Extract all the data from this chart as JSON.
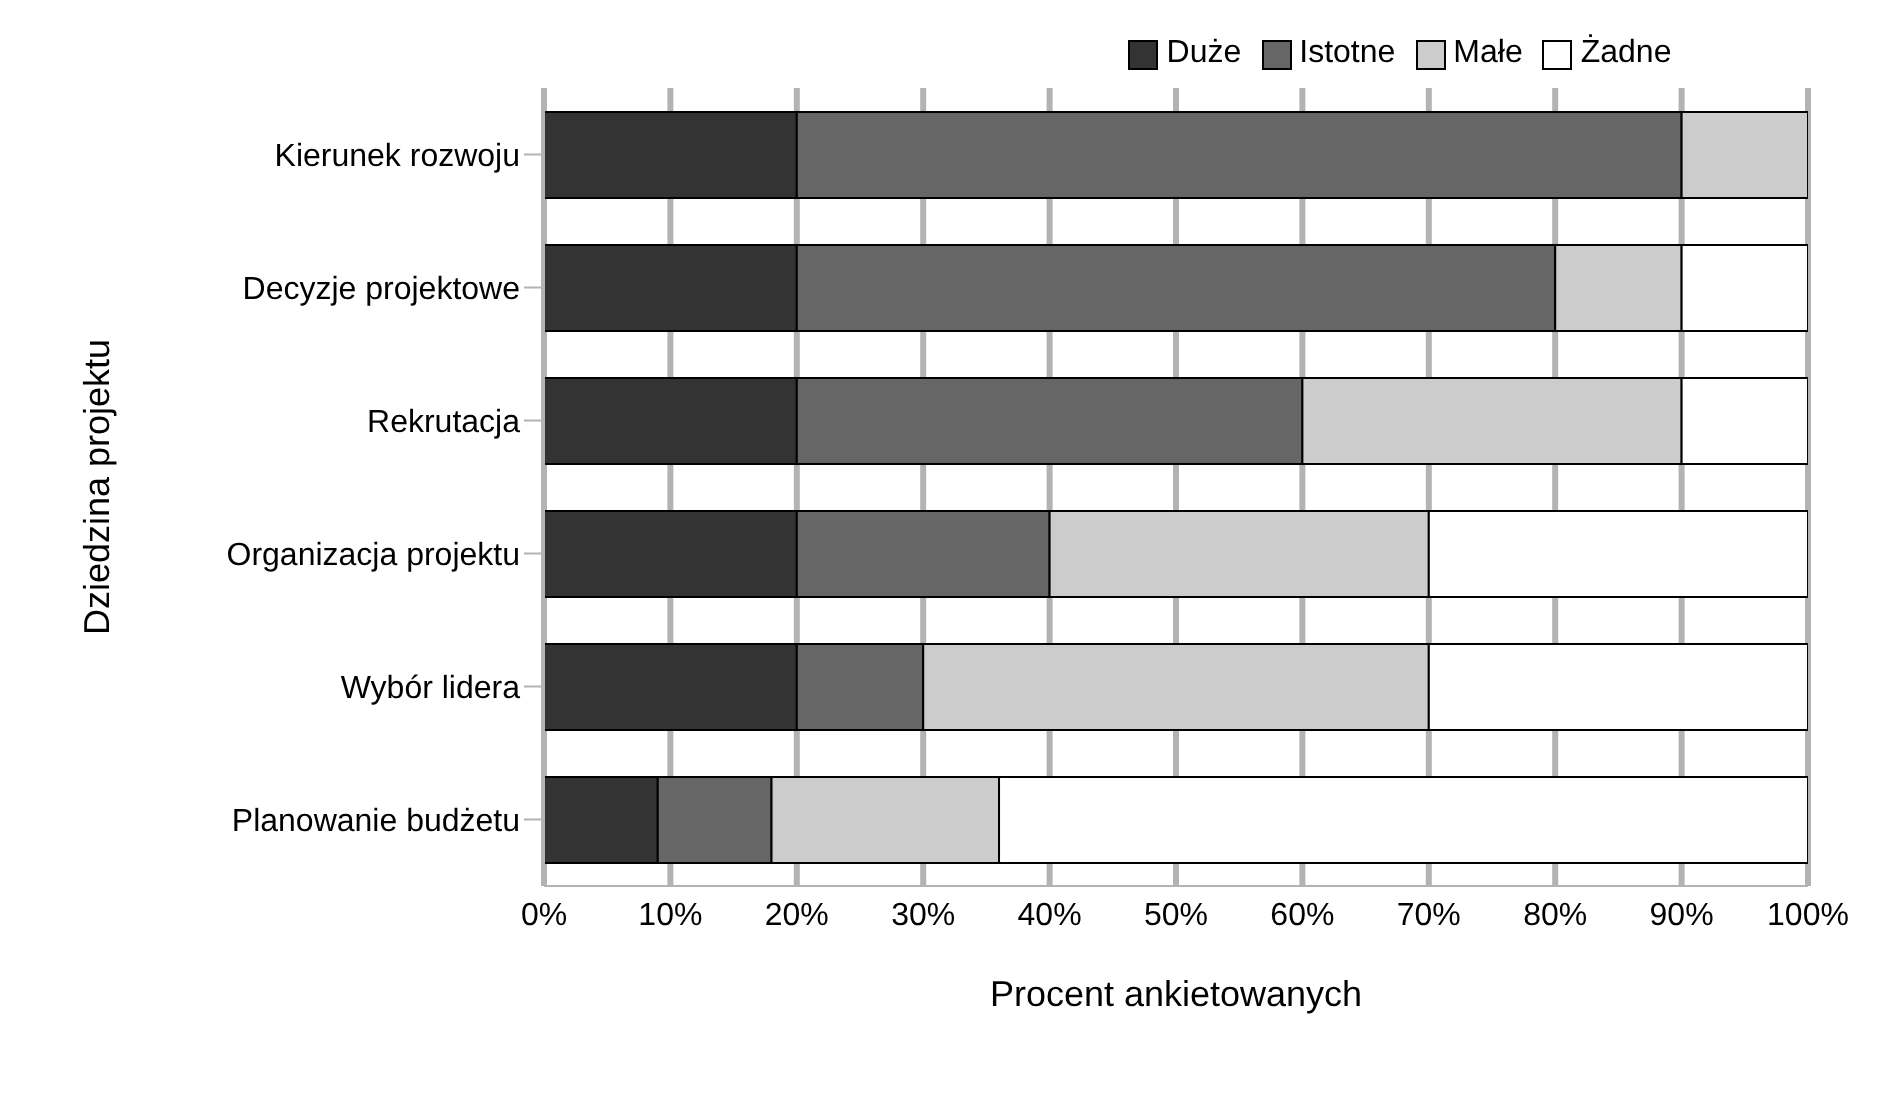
{
  "chart_data": {
    "type": "bar",
    "orientation": "horizontal",
    "stacked": true,
    "xlabel": "Procent ankietowanych",
    "ylabel": "Dziedzina projektu",
    "categories": [
      "Kierunek rozwoju",
      "Decyzje projektowe",
      "Rekrutacja",
      "Organizacja projektu",
      "Wybór lidera",
      "Planowanie budżetu"
    ],
    "series": [
      {
        "name": "Duże",
        "color": "#333333",
        "values": [
          20,
          20,
          20,
          20,
          20,
          9
        ]
      },
      {
        "name": "Istotne",
        "color": "#666666",
        "values": [
          70,
          60,
          40,
          20,
          10,
          9
        ]
      },
      {
        "name": "Małe",
        "color": "#cccccc",
        "values": [
          10,
          10,
          30,
          30,
          40,
          18
        ]
      },
      {
        "name": "Żadne",
        "color": "#ffffff",
        "values": [
          0,
          10,
          10,
          30,
          30,
          64
        ]
      }
    ],
    "xlim": [
      0,
      100
    ],
    "xticks": [
      {
        "value": 0,
        "label": "0%"
      },
      {
        "value": 10,
        "label": "10%"
      },
      {
        "value": 20,
        "label": "20%"
      },
      {
        "value": 30,
        "label": "30%"
      },
      {
        "value": 40,
        "label": "40%"
      },
      {
        "value": 50,
        "label": "50%"
      },
      {
        "value": 60,
        "label": "60%"
      },
      {
        "value": 70,
        "label": "70%"
      },
      {
        "value": 80,
        "label": "80%"
      },
      {
        "value": 90,
        "label": "90%"
      },
      {
        "value": 100,
        "label": "100%"
      }
    ],
    "grid": "x",
    "legend": "top"
  }
}
